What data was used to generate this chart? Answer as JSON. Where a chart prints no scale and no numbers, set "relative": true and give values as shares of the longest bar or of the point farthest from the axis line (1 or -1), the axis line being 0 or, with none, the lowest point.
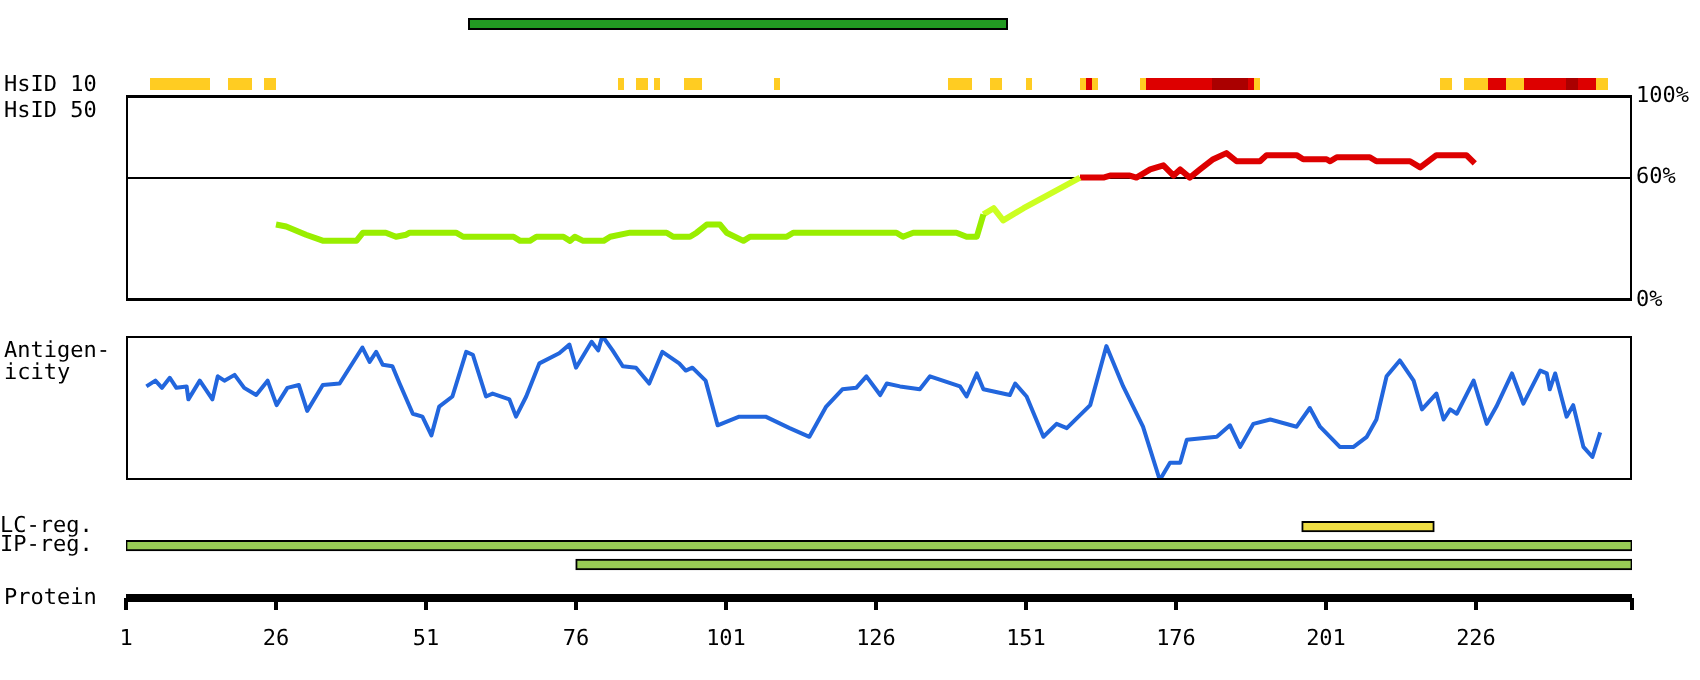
{
  "chart_data": [
    {
      "type": "line",
      "ylabel": "HsID 50",
      "xlim": [
        1,
        252
      ],
      "ylim": [
        0,
        100
      ],
      "yticks": [
        {
          "value": 0,
          "label": "0%"
        },
        {
          "value": 60,
          "label": "60%"
        },
        {
          "value": 100,
          "label": "100%"
        }
      ],
      "grid": "y",
      "tick_labels": "y",
      "legend": false,
      "marker": "none",
      "series": [
        {
          "color": "#99ee00",
          "x": [
            26,
            27.7,
            31,
            33.9,
            39.4,
            40.5,
            44.3,
            46,
            47.7,
            48.3,
            56,
            57.2,
            65.6,
            66.7,
            68.3,
            69.4,
            73.9,
            75,
            75.8,
            77.2,
            80.6,
            81.7,
            85,
            91.1,
            92.2,
            95,
            96.1,
            97.8,
            100,
            101.1,
            103.9,
            105,
            111.1,
            112.2,
            121.6,
            129.4,
            130.5,
            132.2,
            139.4,
            141.1,
            142.8,
            143.9
          ],
          "values": [
            37,
            36,
            32,
            29,
            29,
            33,
            33,
            31,
            32,
            33,
            33,
            31,
            31,
            29,
            29,
            31,
            31,
            29,
            31,
            29,
            29,
            31,
            33,
            33,
            31,
            31,
            33,
            37,
            37,
            33,
            29,
            31,
            31,
            33,
            33,
            33,
            31,
            33,
            33,
            31,
            31,
            42
          ]
        },
        {
          "color": "#ccff22",
          "x": [
            143.9,
            145.6,
            147.2,
            150.6,
            155,
            160
          ],
          "values": [
            42,
            45,
            39,
            45,
            52,
            60
          ]
        },
        {
          "color": "#dd0000",
          "x": [
            160,
            163.9,
            165,
            168.3,
            169.4,
            171.7,
            173.9,
            175.6,
            176.7,
            178.3,
            180,
            182.2,
            184.4,
            186.1,
            190,
            191.1,
            196.1,
            197.2,
            201.1,
            201.7,
            202.8,
            208.3,
            209.4,
            215,
            216.7,
            219.4,
            224.4,
            225.8
          ],
          "values": [
            60,
            60,
            61,
            61,
            60,
            64,
            66,
            61,
            64,
            60,
            64,
            69,
            72,
            68,
            68,
            71,
            71,
            69,
            69,
            68,
            70,
            70,
            68,
            68,
            65,
            71,
            71,
            67
          ]
        }
      ],
      "annotations": [
        "HsID 10"
      ]
    },
    {
      "type": "line",
      "ylabel": "Antigen-icity",
      "xlim": [
        1,
        252
      ],
      "relative": true,
      "tick_labels": false,
      "legend": false,
      "marker": "none",
      "series": [
        {
          "color": "#2266dd",
          "x": [
            4.4,
            5.9,
            7,
            8.3,
            9.4,
            11.1,
            11.4,
            13.3,
            15.4,
            16.3,
            17.4,
            19.1,
            20.7,
            22.7,
            24.6,
            26.1,
            27.9,
            29.8,
            31.2,
            33.8,
            36.6,
            40.4,
            41.6,
            42.7,
            43.8,
            45.4,
            46.6,
            48.8,
            50.4,
            51.9,
            53.2,
            55.4,
            57.7,
            58.8,
            61,
            62.1,
            64.9,
            66,
            67.7,
            69.9,
            73.2,
            74.9,
            76,
            78.6,
            79.7,
            80.4,
            82.1,
            83.8,
            86,
            88.2,
            90.4,
            93.2,
            94.3,
            95.4,
            97.6,
            99.6,
            103.2,
            107.6,
            111.6,
            114.9,
            117.7,
            120.4,
            122.7,
            124.4,
            126.7,
            127.8,
            130,
            133.3,
            135,
            140,
            141.1,
            142.8,
            143.9,
            148.3,
            149.2,
            151.1,
            153.9,
            156.1,
            157.8,
            161.7,
            164.4,
            167.2,
            170.5,
            173.3,
            175,
            176.7,
            177.8,
            182.8,
            185,
            186.7,
            188.9,
            191.7,
            196.1,
            198.3,
            200,
            203.3,
            205.6,
            207.8,
            209.4,
            211.1,
            213.3,
            215.6,
            217,
            219.4,
            220.6,
            221.7,
            222.8,
            225.6,
            227.8,
            229.4,
            232,
            233.9,
            236.7,
            237.8,
            238.3,
            239.2,
            241.1,
            242.2,
            243.9,
            245.4,
            246.7
          ],
          "values": [
            0.65,
            0.69,
            0.64,
            0.71,
            0.64,
            0.65,
            0.56,
            0.69,
            0.56,
            0.72,
            0.69,
            0.73,
            0.64,
            0.59,
            0.69,
            0.52,
            0.64,
            0.66,
            0.48,
            0.66,
            0.67,
            0.92,
            0.82,
            0.89,
            0.8,
            0.79,
            0.67,
            0.46,
            0.44,
            0.31,
            0.51,
            0.58,
            0.89,
            0.87,
            0.58,
            0.6,
            0.56,
            0.44,
            0.58,
            0.81,
            0.88,
            0.94,
            0.78,
            0.96,
            0.9,
            1,
            0.9,
            0.79,
            0.78,
            0.67,
            0.89,
            0.81,
            0.76,
            0.78,
            0.69,
            0.38,
            0.44,
            0.44,
            0.36,
            0.3,
            0.51,
            0.63,
            0.64,
            0.72,
            0.59,
            0.67,
            0.65,
            0.63,
            0.72,
            0.65,
            0.58,
            0.74,
            0.63,
            0.59,
            0.67,
            0.58,
            0.3,
            0.39,
            0.36,
            0.52,
            0.93,
            0.65,
            0.37,
            0,
            0.12,
            0.12,
            0.28,
            0.3,
            0.38,
            0.23,
            0.39,
            0.42,
            0.37,
            0.5,
            0.37,
            0.23,
            0.23,
            0.3,
            0.42,
            0.72,
            0.83,
            0.69,
            0.49,
            0.6,
            0.42,
            0.49,
            0.46,
            0.69,
            0.39,
            0.51,
            0.74,
            0.53,
            0.76,
            0.74,
            0.63,
            0.74,
            0.44,
            0.52,
            0.23,
            0.16,
            0.33
          ]
        }
      ]
    },
    {
      "type": "bar",
      "orientation": "horizontal",
      "categories": [
        "LC-reg.",
        "IP-reg.",
        null
      ],
      "xlabel": "Protein",
      "xlim": [
        1,
        252
      ],
      "xticks": [
        1,
        26,
        51,
        76,
        101,
        126,
        151,
        176,
        201,
        226
      ],
      "legend": false,
      "series": [
        {
          "color": "#eedd44",
          "values": [
            22,
            null,
            null
          ],
          "base": [
            197,
            null,
            null
          ]
        },
        {
          "color": "#99cc55",
          "values": [
            null,
            251,
            null
          ],
          "base": [
            null,
            1,
            null
          ]
        },
        {
          "color": "#99cc55",
          "values": [
            null,
            null,
            176
          ],
          "base": [
            null,
            null,
            76
          ]
        }
      ]
    }
  ]
}
